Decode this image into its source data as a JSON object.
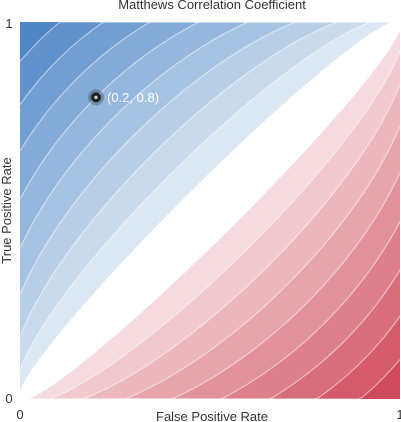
{
  "chart_data": {
    "type": "heatmap",
    "title": "Matthews Correlation Coefficient",
    "xlabel": "False Positive Rate",
    "ylabel": "True Positive Rate",
    "xlim": [
      0,
      1
    ],
    "ylim": [
      0,
      1
    ],
    "x_tick_labels": [
      "0",
      "1"
    ],
    "y_tick_labels": [
      "0",
      "1"
    ],
    "grid": false,
    "colors": {
      "positive": "#4f86c6",
      "zero": "#ffffff",
      "negative": "#cf4a5a",
      "contour_line": "#ffffff"
    },
    "contour_levels": [
      -1,
      -0.9,
      -0.8,
      -0.7,
      -0.6,
      -0.5,
      -0.4,
      -0.3,
      -0.2,
      -0.1,
      0.1,
      0.2,
      0.3,
      0.4,
      0.5,
      0.6,
      0.7,
      0.8,
      0.9,
      1
    ],
    "point": {
      "x": 0.2,
      "y": 0.8,
      "label": "(0.2, 0.8)"
    }
  }
}
